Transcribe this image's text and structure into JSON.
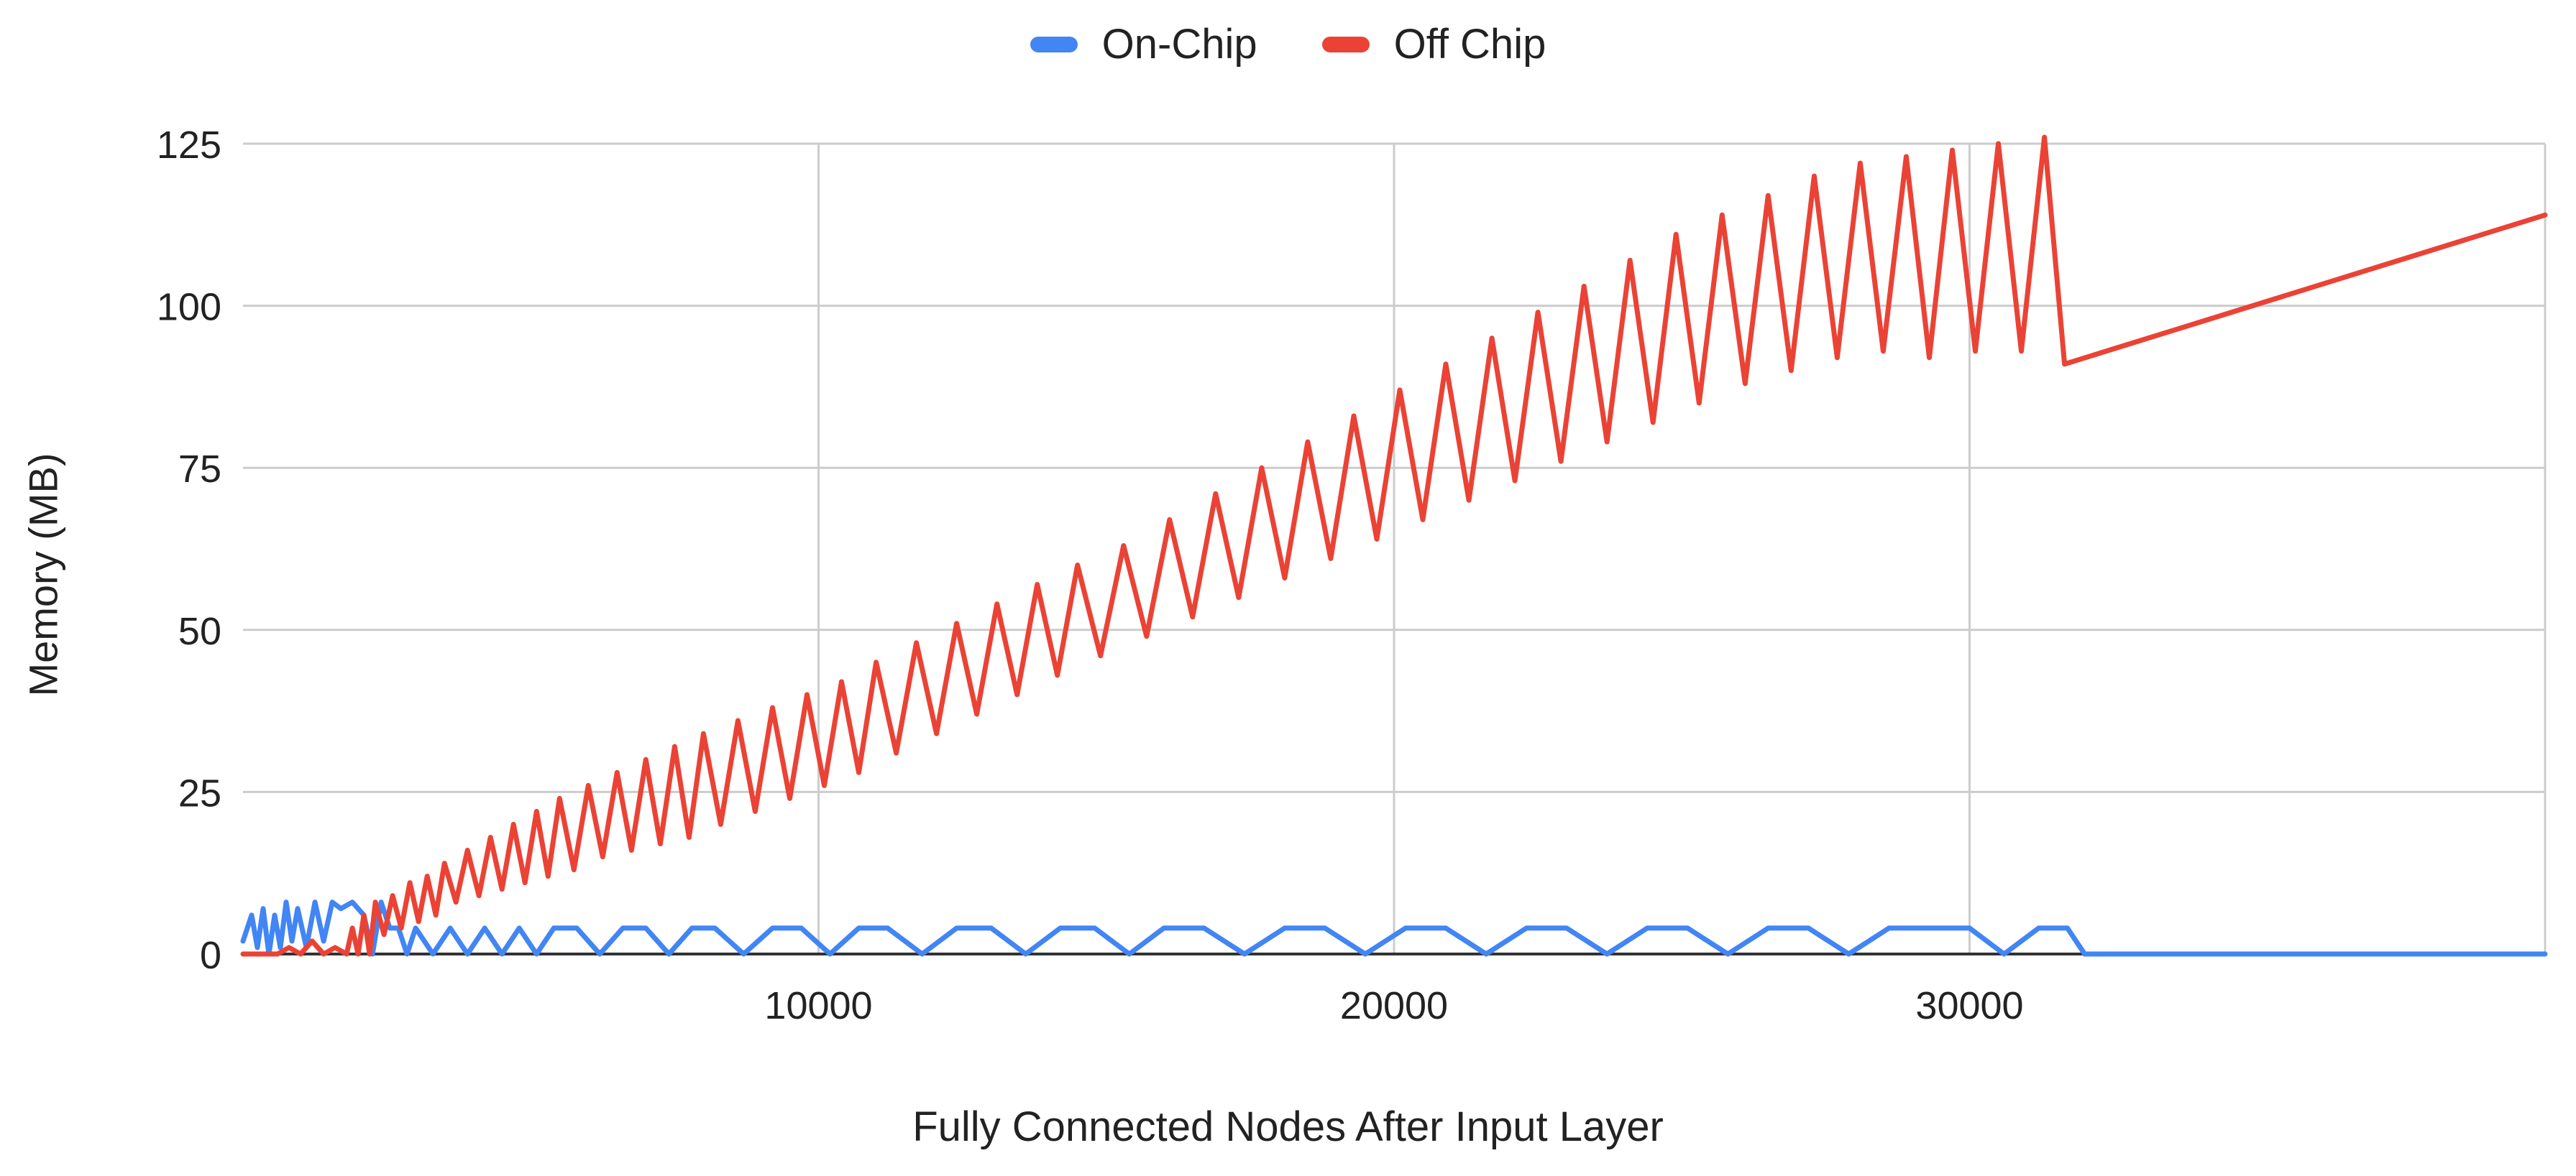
{
  "chart_data": {
    "type": "line",
    "title": "",
    "xlabel": "Fully Connected Nodes After Input Layer",
    "ylabel": "Memory (MB)",
    "xlim": [
      0,
      40000
    ],
    "ylim": [
      0,
      125
    ],
    "x_ticks": [
      10000,
      20000,
      30000
    ],
    "x_tick_labels": [
      "10000",
      "20000",
      "30000"
    ],
    "y_ticks": [
      0,
      25,
      50,
      75,
      100,
      125
    ],
    "y_tick_labels": [
      "0",
      "25",
      "50",
      "75",
      "100",
      "125"
    ],
    "grid": true,
    "legend_position": "top-center",
    "series": [
      {
        "name": "On-Chip",
        "color": "#4285F4",
        "x": [
          0,
          150,
          250,
          350,
          450,
          550,
          650,
          750,
          850,
          950,
          1100,
          1250,
          1400,
          1550,
          1700,
          1900,
          2100,
          2250,
          2400,
          2550,
          2700,
          2850,
          3000,
          3300,
          3600,
          3900,
          4200,
          4500,
          4800,
          5100,
          5400,
          5800,
          6200,
          6600,
          7000,
          7400,
          7800,
          8200,
          8700,
          9200,
          9700,
          10200,
          10700,
          11200,
          11800,
          12400,
          13000,
          13600,
          14200,
          14800,
          15400,
          16000,
          16700,
          17400,
          18100,
          18800,
          19500,
          20200,
          20900,
          21600,
          22300,
          23000,
          23700,
          24400,
          25100,
          25800,
          26500,
          27200,
          27900,
          28600,
          29300,
          30000,
          30600,
          31200,
          31700,
          32000,
          33000,
          36000,
          40000
        ],
        "values": [
          2,
          6,
          1,
          7,
          0,
          6,
          1,
          8,
          2,
          7,
          1,
          8,
          2,
          8,
          7,
          8,
          6,
          0,
          8,
          4,
          4,
          0,
          4,
          0,
          4,
          0,
          4,
          0,
          4,
          0,
          4,
          4,
          0,
          4,
          4,
          0,
          4,
          4,
          0,
          4,
          4,
          0,
          4,
          4,
          0,
          4,
          4,
          0,
          4,
          4,
          0,
          4,
          4,
          0,
          4,
          4,
          0,
          4,
          4,
          0,
          4,
          4,
          0,
          4,
          4,
          0,
          4,
          4,
          0,
          4,
          4,
          4,
          0,
          4,
          4,
          0,
          0,
          0,
          0
        ]
      },
      {
        "name": "Off Chip",
        "color": "#EA4335",
        "x": [
          0,
          600,
          800,
          1000,
          1200,
          1400,
          1600,
          1800,
          1900,
          2000,
          2100,
          2200,
          2300,
          2450,
          2600,
          2750,
          2900,
          3050,
          3200,
          3350,
          3500,
          3700,
          3900,
          4100,
          4300,
          4500,
          4700,
          4900,
          5100,
          5300,
          5500,
          5750,
          6000,
          6250,
          6500,
          6750,
          7000,
          7250,
          7500,
          7750,
          8000,
          8300,
          8600,
          8900,
          9200,
          9500,
          9800,
          10100,
          10400,
          10700,
          11000,
          11350,
          11700,
          12050,
          12400,
          12750,
          13100,
          13450,
          13800,
          14150,
          14500,
          14900,
          15300,
          15700,
          16100,
          16500,
          16900,
          17300,
          17700,
          18100,
          18500,
          18900,
          19300,
          19700,
          20100,
          20500,
          20900,
          21300,
          21700,
          22100,
          22500,
          22900,
          23300,
          23700,
          24100,
          24500,
          24900,
          25300,
          25700,
          26100,
          26500,
          26900,
          27300,
          27700,
          28100,
          28500,
          28900,
          29300,
          29700,
          30100,
          30500,
          30900,
          31300,
          31650,
          40000
        ],
        "values": [
          0,
          0,
          1,
          0,
          2,
          0,
          1,
          0,
          4,
          0,
          6,
          0,
          8,
          3,
          9,
          4,
          11,
          5,
          12,
          6,
          14,
          8,
          16,
          9,
          18,
          10,
          20,
          11,
          22,
          12,
          24,
          13,
          26,
          15,
          28,
          16,
          30,
          17,
          32,
          18,
          34,
          20,
          36,
          22,
          38,
          24,
          40,
          26,
          42,
          28,
          45,
          31,
          48,
          34,
          51,
          37,
          54,
          40,
          57,
          43,
          60,
          46,
          63,
          49,
          67,
          52,
          71,
          55,
          75,
          58,
          79,
          61,
          83,
          64,
          87,
          67,
          91,
          70,
          95,
          73,
          99,
          76,
          103,
          79,
          107,
          82,
          111,
          85,
          114,
          88,
          117,
          90,
          120,
          92,
          122,
          93,
          123,
          92,
          124,
          93,
          125,
          93,
          126,
          91,
          114
        ]
      }
    ]
  }
}
